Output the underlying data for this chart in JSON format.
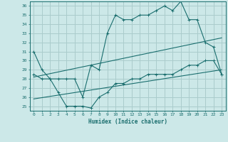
{
  "xlabel": "Humidex (Indice chaleur)",
  "background_color": "#cce8e8",
  "grid_color": "#aacccc",
  "line_color": "#1a6e6e",
  "xlim": [
    -0.5,
    23.5
  ],
  "ylim": [
    24.5,
    36.5
  ],
  "xticks": [
    0,
    1,
    2,
    3,
    4,
    5,
    6,
    7,
    8,
    9,
    10,
    11,
    12,
    13,
    14,
    15,
    16,
    17,
    18,
    19,
    20,
    21,
    22,
    23
  ],
  "yticks": [
    25,
    26,
    27,
    28,
    29,
    30,
    31,
    32,
    33,
    34,
    35,
    36
  ],
  "line1_x": [
    0,
    1,
    2,
    3,
    4,
    5,
    6,
    7,
    8,
    9,
    10,
    11,
    12,
    13,
    14,
    15,
    16,
    17,
    18,
    19,
    20,
    21,
    22,
    23
  ],
  "line1_y": [
    31.0,
    29.0,
    28.0,
    28.0,
    28.0,
    28.0,
    26.0,
    29.5,
    29.0,
    33.0,
    35.0,
    34.5,
    34.5,
    35.0,
    35.0,
    35.5,
    36.0,
    35.5,
    36.5,
    34.5,
    34.5,
    32.0,
    31.5,
    28.5
  ],
  "line2_x": [
    0,
    1,
    2,
    3,
    4,
    5,
    6,
    7,
    8,
    9,
    10,
    11,
    12,
    13,
    14,
    15,
    16,
    17,
    18,
    19,
    20,
    21,
    22,
    23
  ],
  "line2_y": [
    28.5,
    28.0,
    28.0,
    26.5,
    25.0,
    25.0,
    25.0,
    24.8,
    26.0,
    26.5,
    27.5,
    27.5,
    28.0,
    28.0,
    28.5,
    28.5,
    28.5,
    28.5,
    29.0,
    29.5,
    29.5,
    30.0,
    30.0,
    28.5
  ],
  "line3_x": [
    0,
    23
  ],
  "line3_y": [
    28.2,
    32.5
  ],
  "line4_x": [
    0,
    23
  ],
  "line4_y": [
    25.8,
    29.0
  ]
}
